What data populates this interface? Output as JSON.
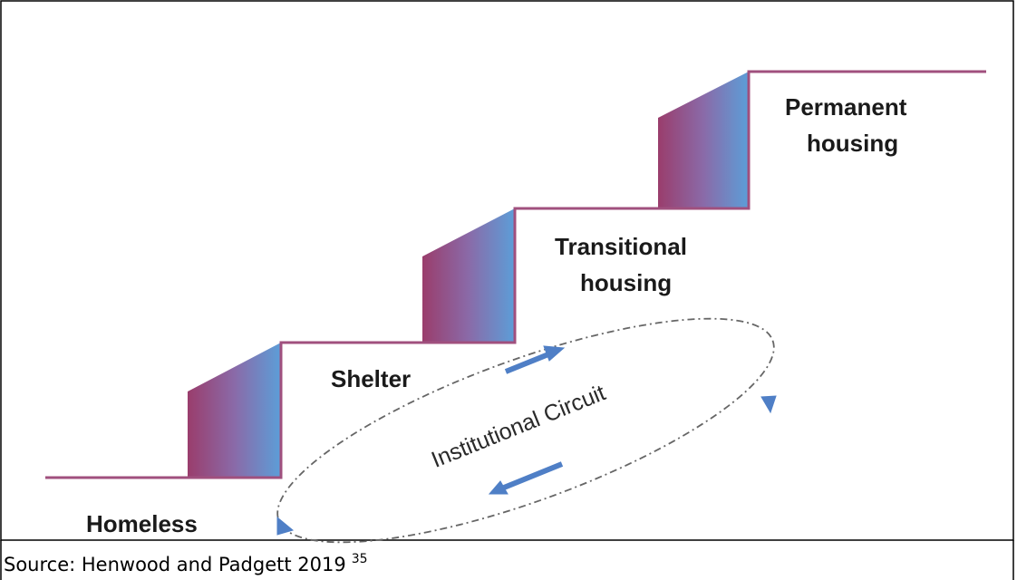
{
  "labels": {
    "homeless": "Homeless",
    "shelter": "Shelter",
    "transitional_housing": [
      "Transitional",
      "housing"
    ],
    "permanent_housing": [
      "Permanent",
      "housing"
    ]
  },
  "circuit_label": "Institutional Circuit",
  "source": {
    "text": "Source: Henwood and Padgett 2019",
    "superscript": "35"
  }
}
